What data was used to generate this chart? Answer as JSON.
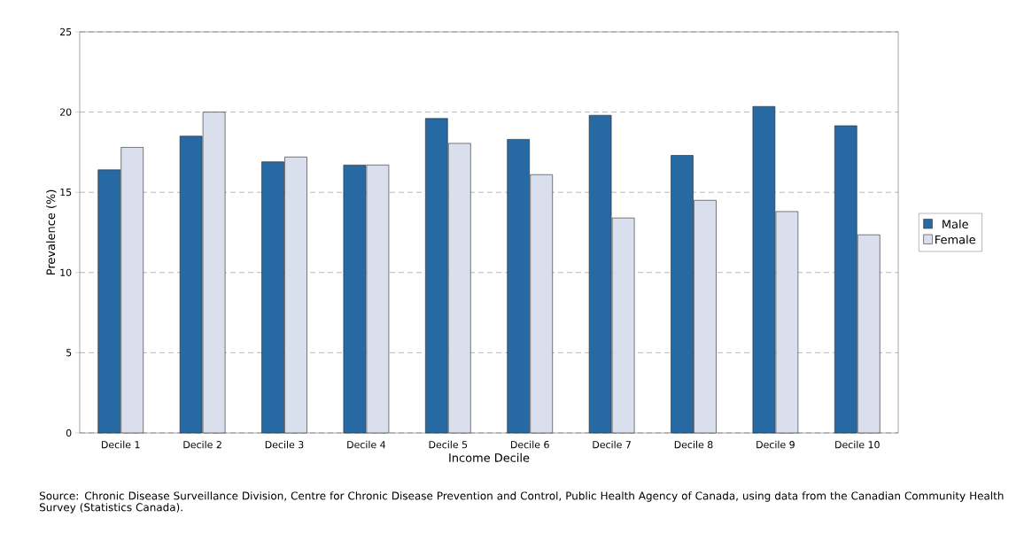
{
  "chart_data": {
    "type": "bar",
    "xlabel": "Income Decile",
    "ylabel": "Prevalence (%)",
    "categories": [
      "Decile 1",
      "Decile 2",
      "Decile 3",
      "Decile 4",
      "Decile 5",
      "Decile 6",
      "Decile 7",
      "Decile 8",
      "Decile 9",
      "Decile 10"
    ],
    "series": [
      {
        "name": "Male",
        "color": "#2769a3",
        "values": [
          16.4,
          18.5,
          16.9,
          16.7,
          19.6,
          18.3,
          19.8,
          17.3,
          20.35,
          19.15
        ]
      },
      {
        "name": "Female",
        "color": "#d9dfec",
        "values": [
          17.8,
          20.0,
          17.2,
          16.7,
          18.05,
          16.1,
          13.4,
          14.5,
          13.8,
          12.35
        ]
      }
    ],
    "ylim": [
      0,
      25
    ],
    "yticks": [
      0,
      5,
      10,
      15,
      20,
      25
    ],
    "grid": "y",
    "legend": "right",
    "annotations": [
      "Source: Chronic Disease Surveillance Division, Centre for Chronic Disease Prevention and Control, Public Health Agency of Canada, using data from the Canadian Community Health Survey (Statistics Canada)."
    ]
  }
}
